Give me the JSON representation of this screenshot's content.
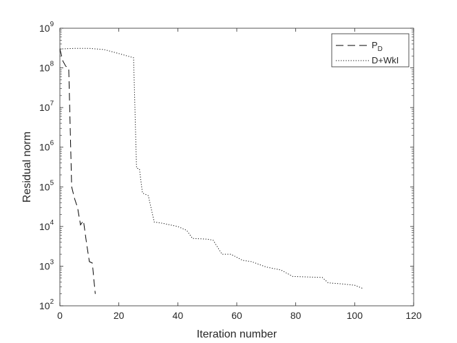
{
  "chart_data": {
    "type": "line",
    "xlabel": "Iteration number",
    "ylabel": "Residual norm",
    "xlim": [
      0,
      120
    ],
    "ylim": [
      100,
      1000000000
    ],
    "y_scale": "log",
    "grid": false,
    "legend_position": "top-right",
    "x_ticks": [
      "0",
      "20",
      "40",
      "60",
      "80",
      "100",
      "120"
    ],
    "x_tick_values": [
      0,
      20,
      40,
      60,
      80,
      100,
      120
    ],
    "y_ticks": [
      {
        "base": "10",
        "exp": "2",
        "value": 100
      },
      {
        "base": "10",
        "exp": "3",
        "value": 1000
      },
      {
        "base": "10",
        "exp": "4",
        "value": 10000
      },
      {
        "base": "10",
        "exp": "5",
        "value": 100000
      },
      {
        "base": "10",
        "exp": "6",
        "value": 1000000
      },
      {
        "base": "10",
        "exp": "7",
        "value": 10000000
      },
      {
        "base": "10",
        "exp": "8",
        "value": 100000000
      },
      {
        "base": "10",
        "exp": "9",
        "value": 1000000000
      }
    ],
    "series": [
      {
        "name": "P_D",
        "legend_main": "P",
        "legend_sub": "D",
        "line_style": "dashed",
        "color": "#000000",
        "x": [
          0,
          1,
          2,
          3,
          4,
          5,
          6,
          7,
          8,
          9,
          10,
          11,
          12
        ],
        "y": [
          300000000,
          150000000,
          110000000,
          100000000,
          100000,
          50000,
          30000,
          11000,
          14000,
          4000,
          1300,
          1200,
          200
        ]
      },
      {
        "name": "D+WkI",
        "line_style": "dotted",
        "color": "#000000",
        "x": [
          0,
          5,
          10,
          15,
          20,
          25,
          26,
          27,
          28,
          30,
          32,
          35,
          40,
          43,
          45,
          50,
          52,
          55,
          58,
          62,
          65,
          70,
          75,
          79,
          85,
          89,
          91,
          95,
          100,
          103
        ],
        "y": [
          300000000,
          310000000,
          310000000,
          290000000,
          230000000,
          180000000,
          300000,
          280000,
          70000,
          60000,
          13000,
          12000,
          10000,
          8000,
          5000,
          4800,
          4500,
          2000,
          2000,
          1400,
          1300,
          950,
          800,
          550,
          530,
          520,
          380,
          360,
          330,
          270
        ]
      }
    ]
  }
}
